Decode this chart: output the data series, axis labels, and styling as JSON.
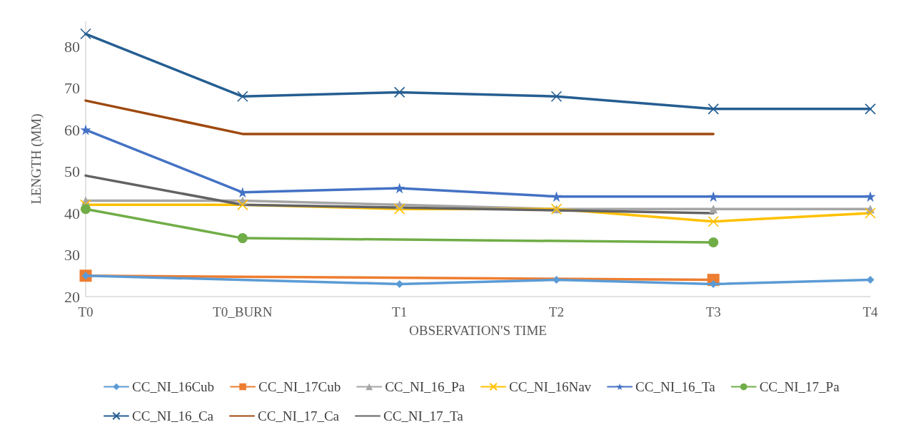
{
  "chart_data": {
    "type": "line",
    "xlabel": "OBSERVATION'S TIME",
    "ylabel": "LENGTH (MM)",
    "categories": [
      "T0",
      "T0_BURN",
      "T1",
      "T2",
      "T3",
      "T4"
    ],
    "ylim": [
      20,
      86
    ],
    "yticks": [
      20,
      30,
      40,
      50,
      60,
      70,
      80
    ],
    "grid": false,
    "legend": "bottom",
    "line_style": "solid",
    "series": [
      {
        "name": "CC_NI_16Cub",
        "color": "#5b9bd5",
        "marker": "diamond",
        "values": [
          25,
          null,
          23,
          24,
          23,
          24
        ]
      },
      {
        "name": "CC_NI_17Cub",
        "color": "#ed7d31",
        "marker": "square",
        "values": [
          25,
          null,
          null,
          null,
          24,
          null
        ]
      },
      {
        "name": "CC_NI_16_Pa",
        "color": "#a5a5a5",
        "marker": "triangle",
        "values": [
          43,
          43,
          42,
          41,
          41,
          41
        ]
      },
      {
        "name": "CC_NI_16Nav",
        "color": "#ffc000",
        "marker": "cross",
        "values": [
          42,
          42,
          41,
          41,
          38,
          40
        ]
      },
      {
        "name": "CC_NI_16_Ta",
        "color": "#4472c4",
        "marker": "star",
        "values": [
          60,
          45,
          46,
          44,
          44,
          44
        ]
      },
      {
        "name": "CC_NI_17_Pa",
        "color": "#70ad47",
        "marker": "circle",
        "values": [
          41,
          34,
          null,
          null,
          33,
          null
        ]
      },
      {
        "name": "CC_NI_16_Ca",
        "color": "#255e91",
        "marker": "cross",
        "values": [
          83,
          68,
          69,
          68,
          65,
          65
        ]
      },
      {
        "name": "CC_NI_17_Ca",
        "color": "#9e480e",
        "marker": "none",
        "values": [
          67,
          59,
          null,
          null,
          59,
          null
        ]
      },
      {
        "name": "CC_NI_17_Ta",
        "color": "#636363",
        "marker": "none",
        "values": [
          49,
          42,
          null,
          null,
          40,
          null
        ]
      }
    ]
  }
}
